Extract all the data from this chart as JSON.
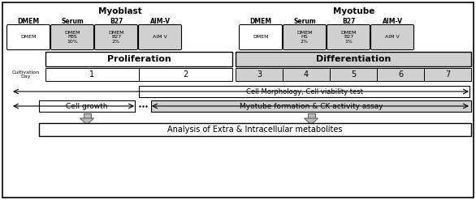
{
  "fig_width": 5.86,
  "fig_height": 2.47,
  "bg_color": "#ffffff",
  "myoblast_label": "Myoblast",
  "myotube_label": "Myotube",
  "myoblast_media_labels": [
    "DMEM",
    "Serum",
    "B27",
    "AIM-V"
  ],
  "myoblast_media_contents": [
    "DMEM",
    "DMEM\nFBS\n10%",
    "DMEM\nB27\n2%",
    "AIM V"
  ],
  "myotube_media_labels": [
    "DMEM",
    "Serum",
    "B27",
    "AIM-V"
  ],
  "myotube_media_contents": [
    "DMEM",
    "DMEM\nHS\n2%",
    "DMEM\nB27\n1%",
    "AIM V"
  ],
  "proliferation_label": "Proliferation",
  "differentiation_label": "Differentiation",
  "cultivation_day_label": "Cultivation\nDay",
  "days_mb": [
    "1",
    "2"
  ],
  "days_mt": [
    "3",
    "4",
    "5",
    "6",
    "7"
  ],
  "cell_morphology_label": "Cell Morphology, Cell viability test",
  "cell_growth_label": "Cell growth",
  "myotube_assay_label": "Myotube formation & CK activity assay",
  "metabolites_label": "Analysis of Extra & Intracellular metabolites",
  "light_gray": "#d0d0d0",
  "white": "#ffffff"
}
